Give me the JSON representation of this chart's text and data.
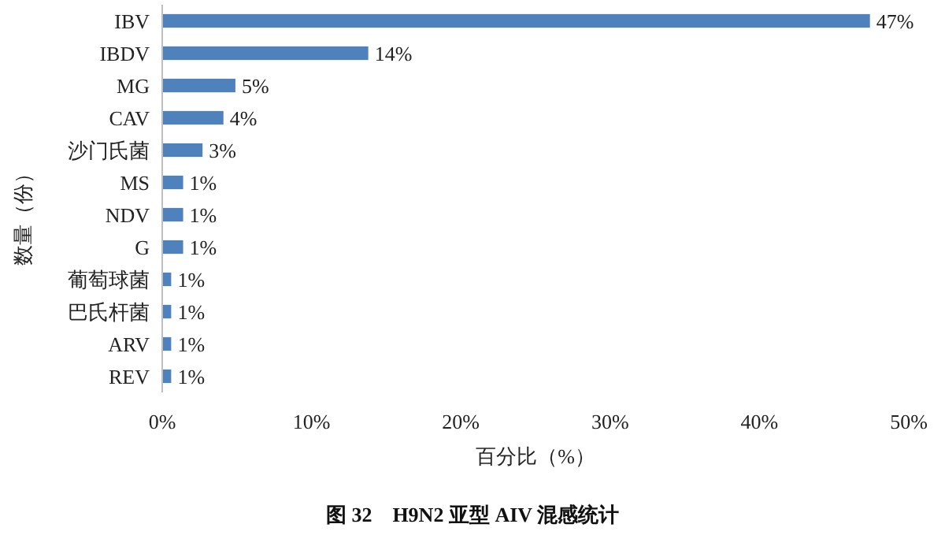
{
  "chart_data": {
    "type": "bar",
    "orientation": "horizontal",
    "title": "图 32　H9N2 亚型 AIV 混感统计",
    "xlabel": "百分比（%）",
    "ylabel": "数量（份）",
    "categories": [
      "IBV",
      "IBDV",
      "MG",
      "CAV",
      "沙门氏菌",
      "MS",
      "NDV",
      "G",
      "葡萄球菌",
      "巴氏杆菌",
      "ARV",
      "REV"
    ],
    "values": [
      47.4,
      13.8,
      4.9,
      4.1,
      2.7,
      1.4,
      1.4,
      1.4,
      0.6,
      0.6,
      0.6,
      0.6
    ],
    "value_labels": [
      "47%",
      "14%",
      "5%",
      "4%",
      "3%",
      "1%",
      "1%",
      "1%",
      "1%",
      "1%",
      "1%",
      "1%"
    ],
    "color": "#4f81bd",
    "xlim": [
      0,
      50
    ],
    "xticks": [
      {
        "value": 0,
        "label": "0%"
      },
      {
        "value": 10,
        "label": "10%"
      },
      {
        "value": 20,
        "label": "20%"
      },
      {
        "value": 30,
        "label": "30%"
      },
      {
        "value": 40,
        "label": "40%"
      },
      {
        "value": 50,
        "label": "50%"
      }
    ],
    "grid": false
  }
}
